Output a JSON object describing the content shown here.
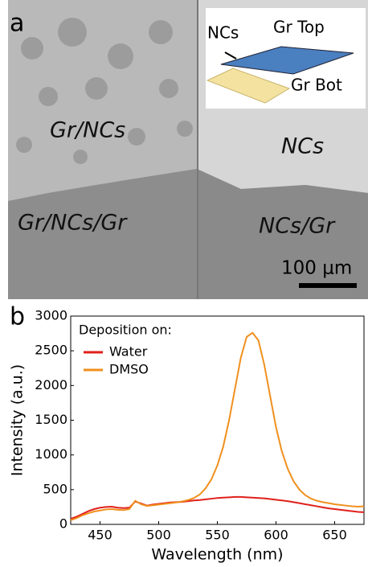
{
  "image": {
    "panel_label": "a",
    "inset_labels": [
      "NCs",
      "Gr Top",
      "Gr Bot"
    ],
    "region_labels": [
      "Gr/NCs",
      "NCs",
      "Gr/NCs/Gr",
      "NCs/Gr"
    ],
    "scale_bar": "100 μm"
  },
  "chart_data": {
    "type": "line",
    "panel_label": "b",
    "x_label": "Wavelength (nm)",
    "y_label": "Intensity (a.u.)",
    "legend_title": "Deposition on:",
    "x": [
      425,
      430,
      435,
      440,
      445,
      450,
      455,
      460,
      465,
      470,
      475,
      480,
      485,
      490,
      495,
      500,
      505,
      510,
      515,
      520,
      525,
      530,
      535,
      540,
      545,
      550,
      555,
      560,
      565,
      570,
      575,
      580,
      585,
      590,
      595,
      600,
      605,
      610,
      615,
      620,
      625,
      630,
      635,
      640,
      645,
      650,
      655,
      660,
      665,
      670,
      675
    ],
    "series": [
      {
        "name": "Water",
        "color": "#e0201b",
        "values": [
          80,
          110,
          150,
          190,
          220,
          240,
          250,
          255,
          240,
          235,
          240,
          330,
          300,
          270,
          285,
          295,
          305,
          315,
          320,
          325,
          335,
          345,
          350,
          360,
          370,
          380,
          385,
          390,
          395,
          395,
          390,
          385,
          380,
          375,
          365,
          355,
          345,
          335,
          320,
          305,
          290,
          275,
          260,
          245,
          230,
          220,
          210,
          200,
          190,
          180,
          175
        ]
      },
      {
        "name": "DMSO",
        "color": "#f0901e",
        "values": [
          60,
          90,
          130,
          160,
          185,
          200,
          215,
          220,
          210,
          205,
          220,
          340,
          290,
          265,
          275,
          285,
          295,
          305,
          315,
          330,
          350,
          380,
          430,
          520,
          650,
          850,
          1120,
          1500,
          1950,
          2400,
          2700,
          2760,
          2650,
          2300,
          1850,
          1400,
          1050,
          800,
          620,
          500,
          420,
          370,
          340,
          320,
          305,
          290,
          280,
          270,
          260,
          255,
          260
        ]
      }
    ],
    "xlim": [
      425,
      675
    ],
    "ylim": [
      0,
      3000
    ],
    "xticks": [
      450,
      500,
      550,
      600,
      650
    ],
    "yticks": [
      0,
      500,
      1000,
      1500,
      2000,
      2500,
      3000
    ]
  }
}
